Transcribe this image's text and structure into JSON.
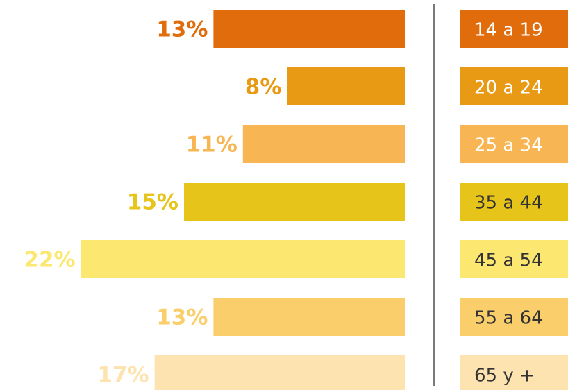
{
  "chart_data": {
    "type": "bar",
    "orientation": "horizontal",
    "categories": [
      "14 a 19",
      "20 a 24",
      "25 a 34",
      "35 a 44",
      "45 a 54",
      "55 a 64",
      "65 y +"
    ],
    "values": [
      13,
      8,
      11,
      15,
      22,
      13,
      17
    ],
    "value_labels": [
      "13%",
      "8%",
      "11%",
      "15%",
      "22%",
      "13%",
      "17%"
    ],
    "colors": [
      "#e06c0c",
      "#e99a15",
      "#f7b553",
      "#e6c41a",
      "#fce771",
      "#f9ce6b",
      "#fde3b0"
    ],
    "label_colors": [
      "#e06c0c",
      "#e99a15",
      "#f7b553",
      "#e6c41a",
      "#fce771",
      "#f9ce6b",
      "#fde3b0"
    ],
    "category_text_colors": [
      "#ffffff",
      "#ffffff",
      "#ffffff",
      "#333333",
      "#333333",
      "#333333",
      "#333333"
    ],
    "divider_color": "#7a7a7a"
  }
}
